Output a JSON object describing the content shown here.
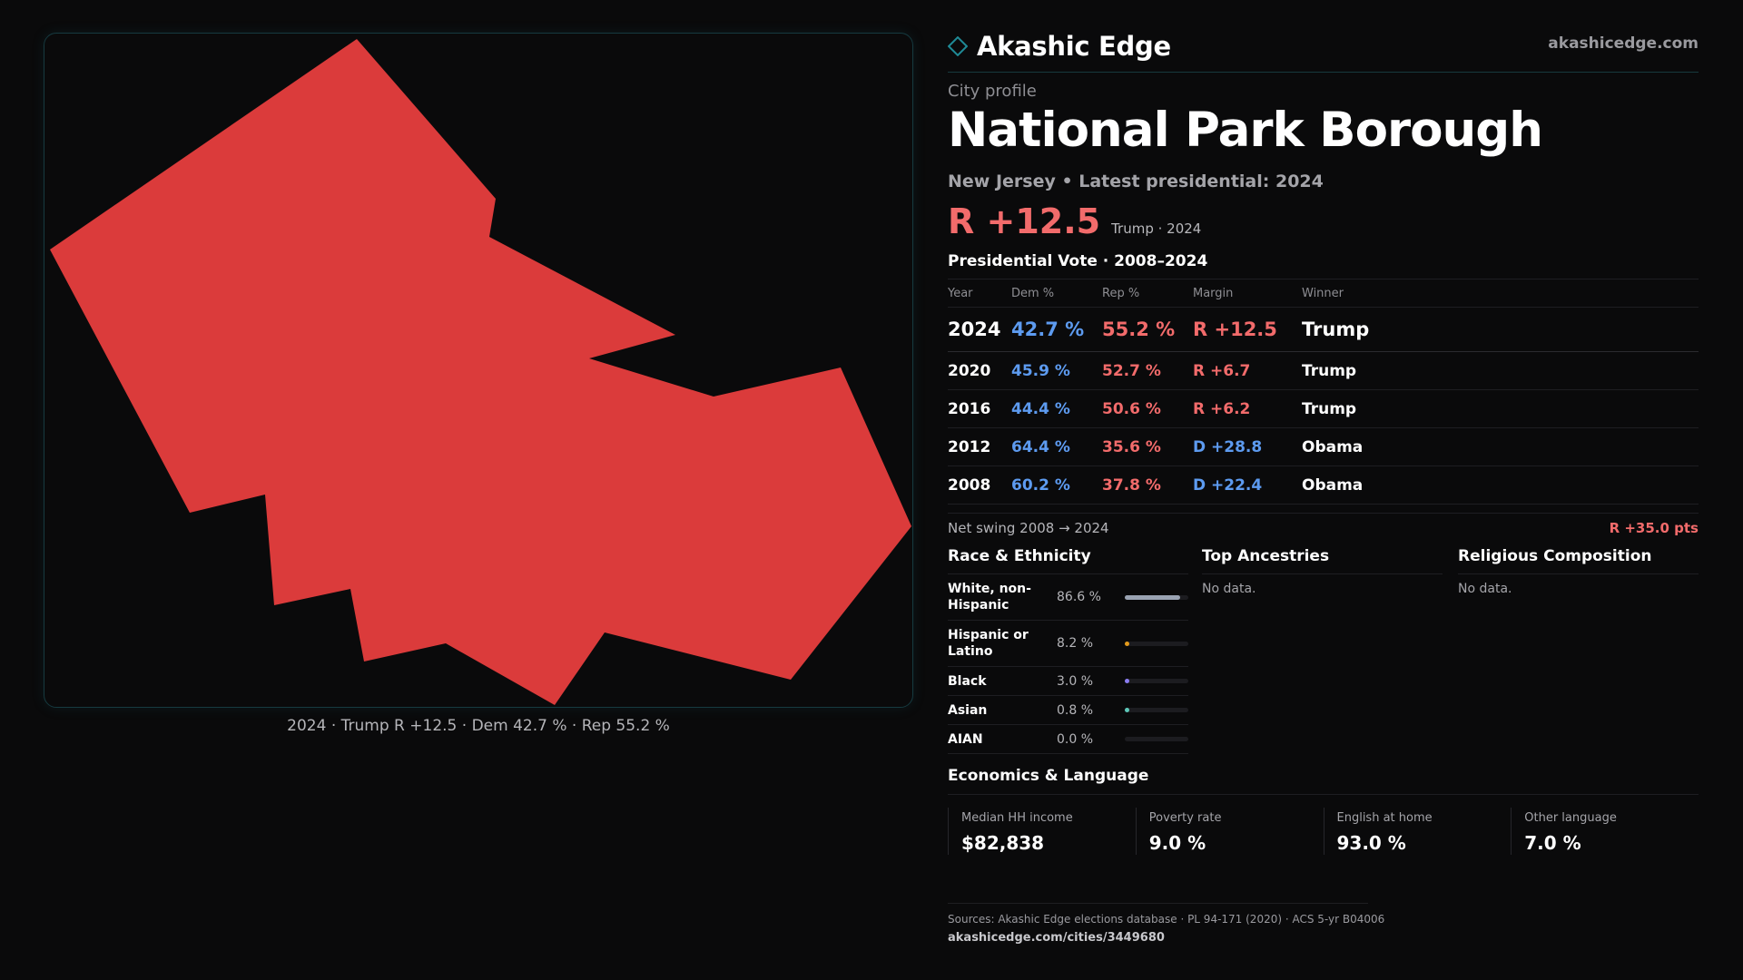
{
  "brand": {
    "name": "Akashic Edge",
    "site": "akashicedge.com"
  },
  "profile": {
    "eyebrow": "City profile",
    "name": "National Park Borough",
    "subtitle": "New Jersey • Latest presidential: 2024",
    "headline_margin": "R +12.5",
    "headline_note": "Trump · 2024"
  },
  "map": {
    "fill_color": "#db3b3b",
    "caption": "2024 · Trump R +12.5 · Dem 42.7 % · Rep 55.2 %"
  },
  "vote": {
    "title": "Presidential Vote · 2008–2024",
    "headers": {
      "year": "Year",
      "dem": "Dem %",
      "rep": "Rep %",
      "margin": "Margin",
      "winner": "Winner"
    },
    "latest": {
      "year": "2024",
      "dem": "42.7 %",
      "rep": "55.2 %",
      "margin": "R +12.5",
      "winner": "Trump"
    },
    "rows": [
      {
        "year": "2020",
        "dem": "45.9 %",
        "rep": "52.7 %",
        "margin": "R +6.7",
        "winner": "Trump"
      },
      {
        "year": "2016",
        "dem": "44.4 %",
        "rep": "50.6 %",
        "margin": "R +6.2",
        "winner": "Trump"
      },
      {
        "year": "2012",
        "dem": "64.4 %",
        "rep": "35.6 %",
        "margin": "D +28.8",
        "winner": "Obama"
      },
      {
        "year": "2008",
        "dem": "60.2 %",
        "rep": "37.8 %",
        "margin": "D +22.4",
        "winner": "Obama"
      }
    ],
    "swing_label": "Net swing 2008 → 2024",
    "swing_value": "R +35.0 pts"
  },
  "race": {
    "title": "Race & Ethnicity",
    "rows": [
      {
        "label": "White, non-Hispanic",
        "pct": "86.6 %",
        "fraction": 0.866,
        "color": "#9aa3b2"
      },
      {
        "label": "Hispanic or Latino",
        "pct": "8.2 %",
        "fraction": 0.082,
        "color": "#e39a1c"
      },
      {
        "label": "Black",
        "pct": "3.0 %",
        "fraction": 0.03,
        "color": "#8a7cf0"
      },
      {
        "label": "Asian",
        "pct": "0.8 %",
        "fraction": 0.008,
        "color": "#5dc7b8"
      },
      {
        "label": "AIAN",
        "pct": "0.0 %",
        "fraction": 0.0,
        "color": "#7a7a80"
      }
    ]
  },
  "ancestries": {
    "title": "Top Ancestries",
    "empty": "No data."
  },
  "religion": {
    "title": "Religious Composition",
    "empty": "No data."
  },
  "economics": {
    "title": "Economics & Language",
    "items": [
      {
        "label": "Median HH income",
        "value": "$82,838"
      },
      {
        "label": "Poverty rate",
        "value": "9.0 %"
      },
      {
        "label": "English at home",
        "value": "93.0 %"
      },
      {
        "label": "Other language",
        "value": "7.0 %"
      }
    ]
  },
  "footer": {
    "sources": "Sources: Akashic Edge elections database · PL 94-171 (2020) · ACS 5-yr B04006",
    "url": "akashicedge.com/cities/3449680"
  },
  "colors": {
    "dem": "#5d9bf0",
    "rep": "#f26b6b",
    "accent": "#1f8a96"
  }
}
